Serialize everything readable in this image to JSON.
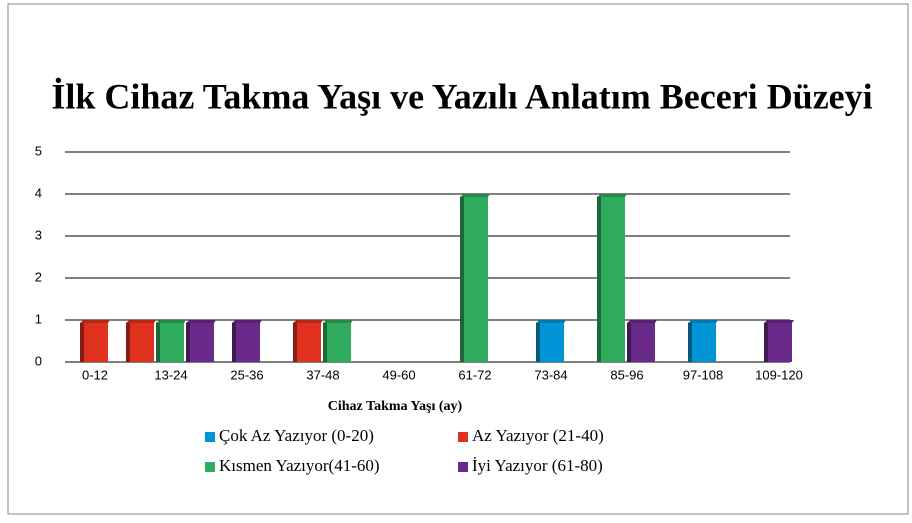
{
  "chart_data": {
    "type": "bar",
    "title": "İlk Cihaz Takma Yaşı ve Yazılı Anlatım Beceri Düzeyi",
    "x_label": "Cihaz Takma Yaşı (ay)",
    "categories": [
      "0-12",
      "13-24",
      "25-36",
      "37-48",
      "49-60",
      "61-72",
      "73-84",
      "85-96",
      "97-108",
      "109-120"
    ],
    "series": [
      {
        "name": "Çok Az Yazıyor (0-20)",
        "color": "#0096d6",
        "values": [
          0,
          0,
          0,
          0,
          0,
          0,
          1,
          0,
          1,
          0
        ]
      },
      {
        "name": "Az Yazıyor (21-40)",
        "color": "#e0301e",
        "values": [
          1,
          1,
          0,
          1,
          0,
          0,
          0,
          0,
          0,
          0
        ]
      },
      {
        "name": "Kısmen Yazıyor(41-60)",
        "color": "#2eab5c",
        "values": [
          0,
          1,
          0,
          1,
          0,
          4,
          0,
          4,
          0,
          0
        ]
      },
      {
        "name": "İyi Yazıyor (61-80)",
        "color": "#6a2a8a",
        "values": [
          0,
          1,
          1,
          0,
          0,
          0,
          0,
          1,
          0,
          1
        ]
      }
    ],
    "ylim": [
      0,
      5
    ],
    "yticks": [
      0,
      1,
      2,
      3,
      4,
      5
    ],
    "grid": true
  }
}
